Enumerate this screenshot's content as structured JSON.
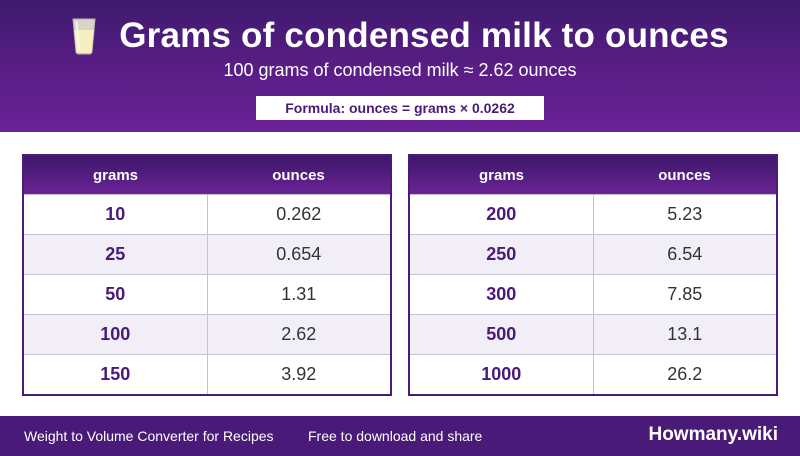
{
  "header": {
    "title": "Grams of condensed milk to ounces",
    "icon": "glass-of-milk-icon",
    "subtitle": "100 grams of condensed milk ≈ 2.62 ounces",
    "formula": "Formula: ounces = grams × 0.0262"
  },
  "tables": [
    {
      "headers": [
        "grams",
        "ounces"
      ],
      "rows": [
        [
          "10",
          "0.262"
        ],
        [
          "25",
          "0.654"
        ],
        [
          "50",
          "1.31"
        ],
        [
          "100",
          "2.62"
        ],
        [
          "150",
          "3.92"
        ]
      ]
    },
    {
      "headers": [
        "grams",
        "ounces"
      ],
      "rows": [
        [
          "200",
          "5.23"
        ],
        [
          "250",
          "6.54"
        ],
        [
          "300",
          "7.85"
        ],
        [
          "500",
          "13.1"
        ],
        [
          "1000",
          "26.2"
        ]
      ]
    }
  ],
  "footer": {
    "left": "Weight to Volume Converter for Recipes",
    "middle": "Free to download and share",
    "brand": "Howmany.wiki"
  },
  "colors": {
    "header_purple": "#5a1e86",
    "footer_purple": "#4a1a78",
    "row_alt": "#f2eef8"
  }
}
